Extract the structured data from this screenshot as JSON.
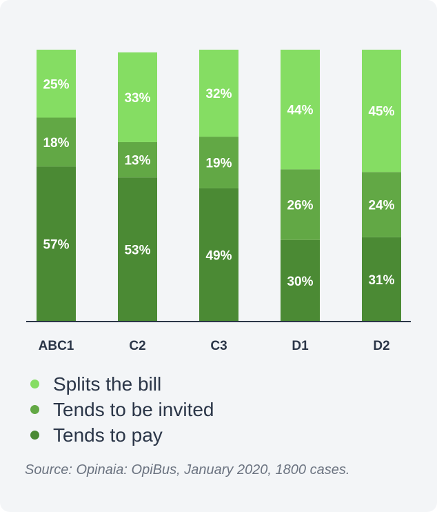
{
  "chart_data": {
    "type": "bar",
    "stacked": true,
    "categories": [
      "ABC1",
      "C2",
      "C3",
      "D1",
      "D2"
    ],
    "series": [
      {
        "name": "Tends to pay",
        "color": "#4b8a34",
        "values": [
          57,
          53,
          49,
          30,
          31
        ]
      },
      {
        "name": "Tends to be invited",
        "color": "#62a845",
        "values": [
          18,
          13,
          19,
          26,
          24
        ]
      },
      {
        "name": "Splits the bill",
        "color": "#85dd63",
        "values": [
          25,
          33,
          32,
          44,
          45
        ]
      }
    ],
    "value_suffix": "%",
    "ylim": [
      0,
      100
    ],
    "legend_placement": "bottom-left",
    "legend_order": [
      "Splits the bill",
      "Tends to be invited",
      "Tends to pay"
    ],
    "grid": false
  },
  "source": "Source: Opinaia: OpiBus, January 2020, 1800 cases."
}
